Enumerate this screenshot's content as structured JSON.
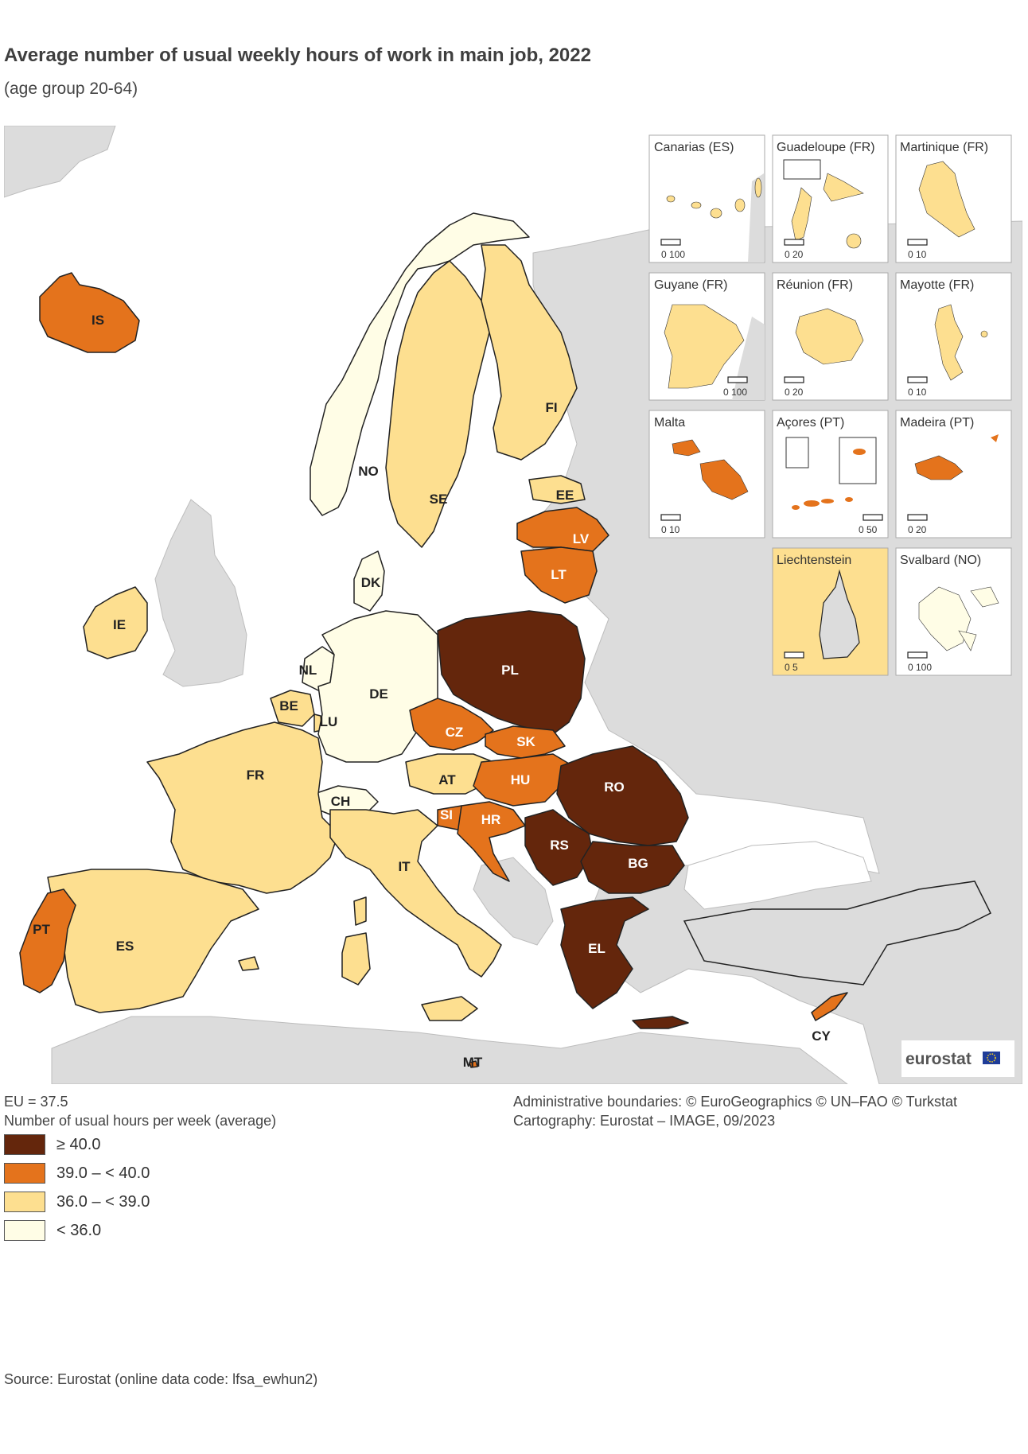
{
  "header": {
    "title": "Average number of usual weekly hours of work in main job, 2022",
    "subtitle": "(age group 20-64)"
  },
  "colors": {
    "sea": "#ffffff",
    "non_eu": "#dcdcdc",
    "c40": "#64260c",
    "c39": "#e4731c",
    "c36": "#fddf90",
    "c35": "#fffde6",
    "border": "#222222"
  },
  "countries": [
    {
      "code": "IS",
      "class": "39.0 – < 40.0"
    },
    {
      "code": "NO",
      "class": "< 36.0"
    },
    {
      "code": "SE",
      "class": "36.0 – < 39.0"
    },
    {
      "code": "FI",
      "class": "36.0 – < 39.0"
    },
    {
      "code": "EE",
      "class": "36.0 – < 39.0"
    },
    {
      "code": "LV",
      "class": "39.0 – < 40.0"
    },
    {
      "code": "LT",
      "class": "39.0 – < 40.0"
    },
    {
      "code": "DK",
      "class": "< 36.0"
    },
    {
      "code": "IE",
      "class": "36.0 – < 39.0"
    },
    {
      "code": "NL",
      "class": "< 36.0"
    },
    {
      "code": "BE",
      "class": "36.0 – < 39.0"
    },
    {
      "code": "LU",
      "class": "36.0 – < 39.0"
    },
    {
      "code": "DE",
      "class": "< 36.0"
    },
    {
      "code": "PL",
      "class": "≥ 40.0"
    },
    {
      "code": "CZ",
      "class": "39.0 – < 40.0"
    },
    {
      "code": "SK",
      "class": "39.0 – < 40.0"
    },
    {
      "code": "HU",
      "class": "39.0 – < 40.0"
    },
    {
      "code": "AT",
      "class": "36.0 – < 39.0"
    },
    {
      "code": "CH",
      "class": "< 36.0"
    },
    {
      "code": "FR",
      "class": "36.0 – < 39.0"
    },
    {
      "code": "SI",
      "class": "39.0 – < 40.0"
    },
    {
      "code": "HR",
      "class": "39.0 – < 40.0"
    },
    {
      "code": "RO",
      "class": "≥ 40.0"
    },
    {
      "code": "RS",
      "class": "≥ 40.0"
    },
    {
      "code": "BG",
      "class": "≥ 40.0"
    },
    {
      "code": "EL",
      "class": "≥ 40.0"
    },
    {
      "code": "IT",
      "class": "36.0 – < 39.0"
    },
    {
      "code": "PT",
      "class": "39.0 – < 40.0"
    },
    {
      "code": "ES",
      "class": "36.0 – < 39.0"
    },
    {
      "code": "CY",
      "class": "39.0 – < 40.0"
    },
    {
      "code": "MT",
      "class": "39.0 – < 40.0"
    }
  ],
  "insets": [
    {
      "name": "Canarias (ES)",
      "scale": "0  100"
    },
    {
      "name": "Guadeloupe (FR)",
      "scale": "0  20"
    },
    {
      "name": "Martinique (FR)",
      "scale": "0  10"
    },
    {
      "name": "Guyane (FR)",
      "scale": "0  100"
    },
    {
      "name": "Réunion (FR)",
      "scale": "0  20"
    },
    {
      "name": "Mayotte (FR)",
      "scale": "0  10"
    },
    {
      "name": "Malta",
      "scale": "0  10"
    },
    {
      "name": "Açores (PT)",
      "scale": "0  50"
    },
    {
      "name": "Madeira (PT)",
      "scale": "0  20"
    },
    {
      "name": "Liechtenstein",
      "scale": "0  5"
    },
    {
      "name": "Svalbard (NO)",
      "scale": "0  100"
    }
  ],
  "logo": "eurostat",
  "footer": {
    "eu_value": "EU = 37.5",
    "legend_title": "Number of usual hours per week (average)",
    "boundaries": "Administrative boundaries: © EuroGeographics © UN–FAO © Turkstat",
    "cartography": "Cartography: Eurostat – IMAGE, 09/2023"
  },
  "legend": [
    {
      "label": "≥ 40.0",
      "color": "#64260c"
    },
    {
      "label": "39.0 – < 40.0",
      "color": "#e4731c"
    },
    {
      "label": "36.0 – < 39.0",
      "color": "#fddf90"
    },
    {
      "label": "< 36.0",
      "color": "#fffde6"
    }
  ],
  "source": "Source: Eurostat (online data code: lfsa_ewhun2)"
}
